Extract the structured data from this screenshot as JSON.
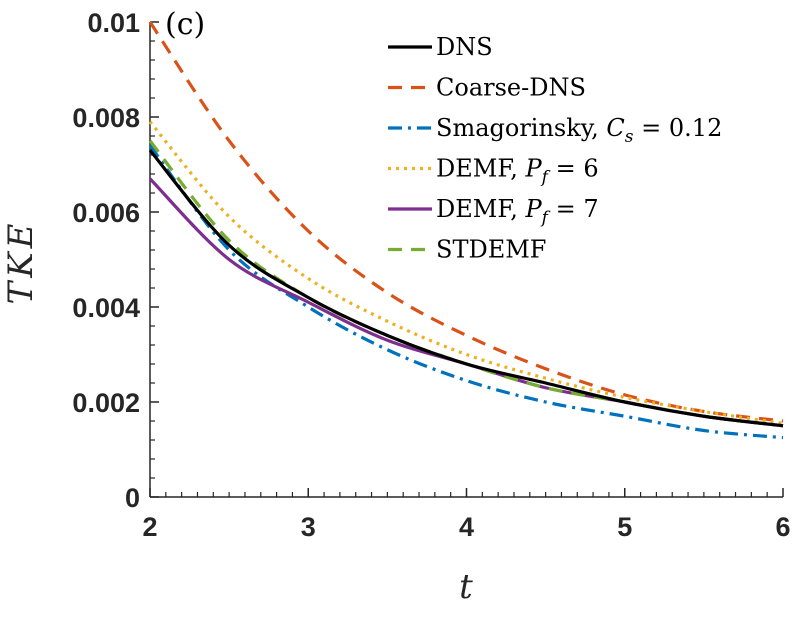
{
  "chart_data": {
    "type": "line",
    "panel_label": "(c)",
    "xlabel": "t",
    "ylabel": "TKE",
    "xlim": [
      2,
      6
    ],
    "ylim": [
      0,
      0.01
    ],
    "x_ticks": [
      2,
      3,
      4,
      5,
      6
    ],
    "x_tick_labels": [
      "2",
      "3",
      "4",
      "5",
      "6"
    ],
    "y_ticks": [
      0,
      0.002,
      0.004,
      0.006,
      0.008,
      0.01
    ],
    "y_tick_labels": [
      "0",
      "0.002",
      "0.004",
      "0.006",
      "0.008",
      "0.01"
    ],
    "grid": false,
    "legend_position": "top-right",
    "x": [
      2.0,
      2.5,
      3.0,
      3.5,
      4.0,
      4.5,
      5.0,
      5.5,
      6.0
    ],
    "series": [
      {
        "name": "DNS",
        "legend_label": "DNS",
        "color": "#000000",
        "dash": "solid",
        "values": [
          0.0073,
          0.0053,
          0.0042,
          0.0034,
          0.0028,
          0.0024,
          0.002,
          0.0017,
          0.0015
        ]
      },
      {
        "name": "Coarse-DNS",
        "legend_label": "Coarse-DNS",
        "color": "#D95319",
        "dash": "dashed",
        "values": [
          0.01,
          0.0075,
          0.0056,
          0.0043,
          0.0034,
          0.0027,
          0.00215,
          0.0018,
          0.0016
        ]
      },
      {
        "name": "Smagorinsky, Cs = 0.12",
        "legend_label": "Smagorinsky, ",
        "legend_math": "Cs = 0.12",
        "color": "#0072BD",
        "dash": "dashdot",
        "values": [
          0.0074,
          0.0052,
          0.004,
          0.0031,
          0.00245,
          0.002,
          0.0017,
          0.0014,
          0.00125
        ]
      },
      {
        "name": "DEMF, Pf = 6",
        "legend_label": "DEMF, ",
        "legend_math": "Pf = 6",
        "color": "#EDB120",
        "dash": "dotted",
        "values": [
          0.0079,
          0.0059,
          0.0046,
          0.0037,
          0.003,
          0.0025,
          0.0021,
          0.0018,
          0.00155
        ]
      },
      {
        "name": "DEMF, Pf = 7",
        "legend_label": "DEMF, ",
        "legend_math": "Pf = 7",
        "color": "#7E2F8E",
        "dash": "solid",
        "values": [
          0.0067,
          0.005,
          0.0041,
          0.0033,
          0.0028,
          0.0023,
          0.002,
          0.0017,
          0.0015
        ]
      },
      {
        "name": "STDEMF",
        "legend_label": "STDEMF",
        "color": "#77AC30",
        "dash": "dashed",
        "values": [
          0.0075,
          0.0054,
          0.0042,
          0.0034,
          0.0028,
          0.0023,
          0.002,
          0.0017,
          0.0015
        ]
      }
    ]
  }
}
